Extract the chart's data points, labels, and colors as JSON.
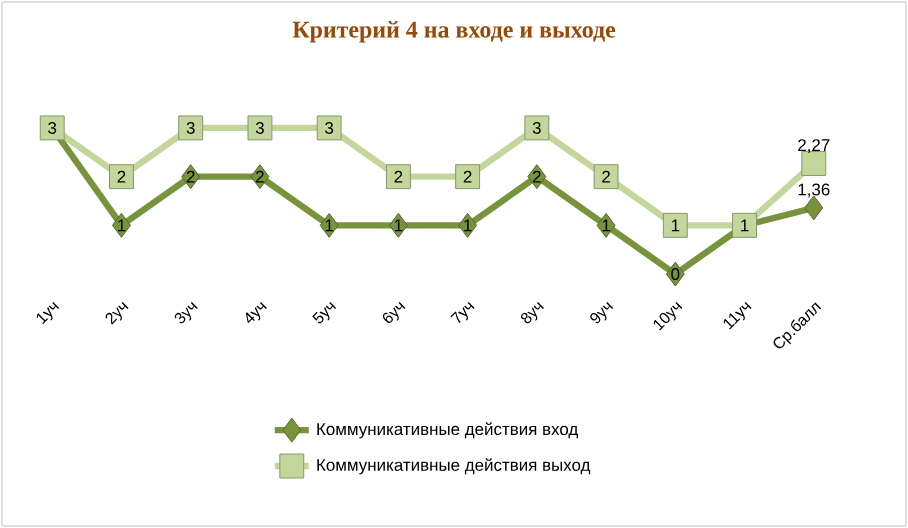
{
  "chart_data": {
    "type": "line",
    "title": "Критерий 4 на входе и выходе",
    "categories": [
      "1уч",
      "2уч",
      "3уч",
      "4уч",
      "5уч",
      "6уч",
      "7уч",
      "8уч",
      "9уч",
      "10уч",
      "11уч",
      "Ср.балл"
    ],
    "series": [
      {
        "name": "Коммуникативные действия вход",
        "color": "#77933c",
        "marker": "diamond",
        "values": [
          3,
          1,
          2,
          2,
          1,
          1,
          1,
          2,
          1,
          0,
          1,
          1.36
        ],
        "value_labels": [
          null,
          "1",
          "2",
          "2",
          "1",
          "1",
          "1",
          "2",
          "1",
          "0",
          null,
          "1,36"
        ]
      },
      {
        "name": "Коммуникативные действия выход",
        "color": "#c3d69b",
        "marker": "square",
        "values": [
          3,
          2,
          3,
          3,
          3,
          2,
          2,
          3,
          2,
          1,
          1,
          2.27
        ],
        "value_labels": [
          "3",
          "2",
          "3",
          "3",
          "3",
          "2",
          "2",
          "3",
          "2",
          "1",
          "1",
          "2,27"
        ]
      }
    ],
    "legend": "bottom",
    "line_style": "solid"
  }
}
